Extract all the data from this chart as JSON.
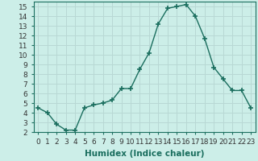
{
  "x": [
    0,
    1,
    2,
    3,
    4,
    5,
    6,
    7,
    8,
    9,
    10,
    11,
    12,
    13,
    14,
    15,
    16,
    17,
    18,
    19,
    20,
    21,
    22,
    23
  ],
  "y": [
    4.5,
    4.0,
    2.8,
    2.2,
    2.2,
    4.5,
    4.8,
    5.0,
    5.3,
    6.5,
    6.5,
    8.5,
    10.2,
    13.2,
    14.8,
    15.0,
    15.2,
    14.0,
    11.7,
    8.7,
    7.5,
    6.3,
    6.3,
    4.5
  ],
  "line_color": "#1a6e5e",
  "marker": "+",
  "markersize": 4,
  "markeredgewidth": 1.2,
  "linewidth": 1.0,
  "bg_color": "#cceee8",
  "grid_color": "#b8d8d4",
  "xlabel": "Humidex (Indice chaleur)",
  "xlim": [
    -0.5,
    23.5
  ],
  "ylim": [
    2,
    15.5
  ],
  "yticks": [
    2,
    3,
    4,
    5,
    6,
    7,
    8,
    9,
    10,
    11,
    12,
    13,
    14,
    15
  ],
  "xticks": [
    0,
    1,
    2,
    3,
    4,
    5,
    6,
    7,
    8,
    9,
    10,
    11,
    12,
    13,
    14,
    15,
    16,
    17,
    18,
    19,
    20,
    21,
    22,
    23
  ],
  "xlabel_fontsize": 7.5,
  "tick_fontsize": 6.5
}
